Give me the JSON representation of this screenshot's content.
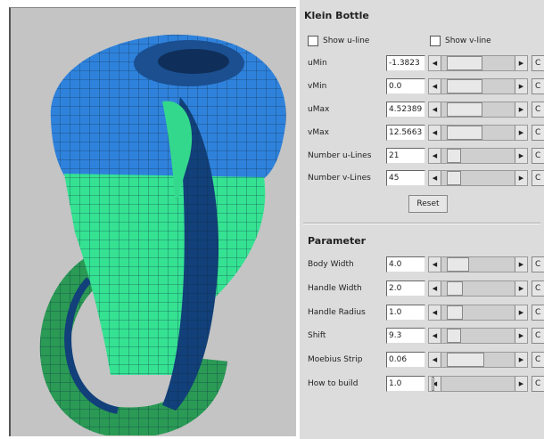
{
  "title": "Klein Bottle",
  "checkboxes": [
    "Show u-line",
    "Show v-line"
  ],
  "rows": [
    {
      "label": "uMin",
      "value": "-1.3823"
    },
    {
      "label": "vMin",
      "value": "0.0"
    },
    {
      "label": "uMax",
      "value": "4.52389"
    },
    {
      "label": "vMax",
      "value": "12.5663"
    },
    {
      "label": "Number u-Lines",
      "value": "21"
    },
    {
      "label": "Number v-Lines",
      "value": "45"
    }
  ],
  "reset": "Reset",
  "parameter": {
    "title": "Parameter",
    "rows": [
      {
        "label": "Body Width",
        "value": "4.0"
      },
      {
        "label": "Handle Width",
        "value": "2.0"
      },
      {
        "label": "Handle Radius",
        "value": "1.0"
      },
      {
        "label": "Shift",
        "value": "9.3"
      },
      {
        "label": "Moebius Strip",
        "value": "0.06"
      },
      {
        "label": "How to build",
        "value": "1.0"
      }
    ]
  },
  "c_button": "C"
}
